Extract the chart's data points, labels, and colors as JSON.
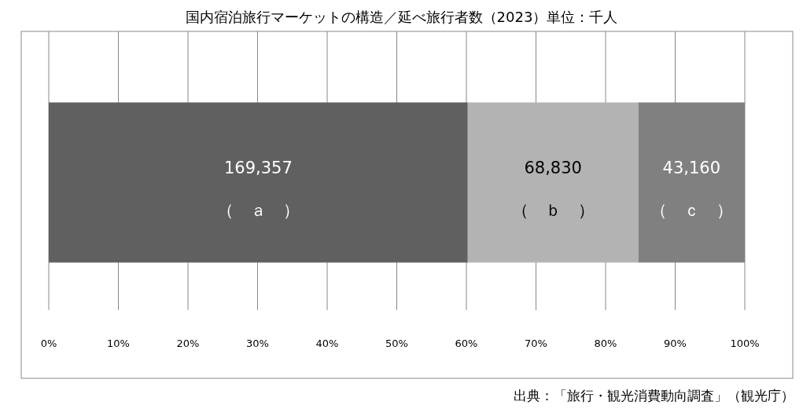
{
  "chart_data": {
    "type": "bar",
    "orientation": "horizontal",
    "stacked": true,
    "title": "国内宿泊旅行マーケットの構造／延べ旅行者数（2023）単位：千人",
    "categories": [
      null
    ],
    "series": [
      {
        "name": "（　ａ　）",
        "color": "#606060",
        "values": [
          60.2
        ]
      },
      {
        "name": "（　ｂ　）",
        "color": "#b3b3b3",
        "values": [
          24.5
        ]
      },
      {
        "name": "（　ｃ　）",
        "color": "#808080",
        "values": [
          15.3
        ]
      }
    ],
    "xlim": [
      0,
      100
    ],
    "xticks": [
      {
        "value": 0,
        "label": "0%"
      },
      {
        "value": 10,
        "label": "10%"
      },
      {
        "value": 20,
        "label": "20%"
      },
      {
        "value": 30,
        "label": "30%"
      },
      {
        "value": 40,
        "label": "40%"
      },
      {
        "value": 50,
        "label": "50%"
      },
      {
        "value": 60,
        "label": "60%"
      },
      {
        "value": 70,
        "label": "70%"
      },
      {
        "value": 80,
        "label": "80%"
      },
      {
        "value": 90,
        "label": "90%"
      },
      {
        "value": 100,
        "label": "100%"
      }
    ],
    "grid": "x",
    "legend": false,
    "annotations": [
      "169,357",
      "68,830",
      "43,160",
      "出典：「旅行・観光消費動向調査」（観光庁）"
    ]
  }
}
